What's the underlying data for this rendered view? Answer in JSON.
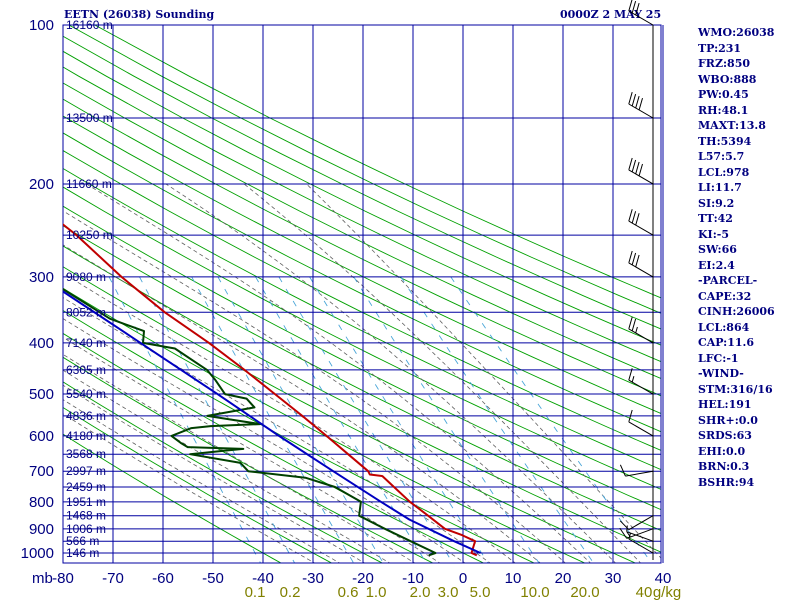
{
  "header": {
    "title": "EETN (26038) Sounding",
    "datetime": "0000Z  2 MAY 25"
  },
  "indices": [
    "WMO:26038",
    "TP:231",
    "FRZ:850",
    "WBO:888",
    "PW:0.45",
    "RH:48.1",
    "MAXT:13.8",
    "TH:5394",
    "L57:5.7",
    "LCL:978",
    "LI:11.7",
    "SI:9.2",
    "TT:42",
    "KI:-5",
    "SW:66",
    "EI:2.4",
    "-PARCEL-",
    "CAPE:32",
    "CINH:26006",
    "LCL:864",
    "CAP:11.6",
    "LFC:-1",
    "-WIND-",
    "STM:316/16",
    "HEL:191",
    "SHR+:0.0",
    "SRDS:63",
    "EHI:0.0",
    "BRN:0.3",
    "BSHR:94"
  ],
  "colors": {
    "grid": "#0000a0",
    "dry_adiabat": "#00a000",
    "moist_adiabat": "#606060",
    "mixing_ratio": "#4aa6d8",
    "temperature": "#c00000",
    "dewpoint": "#004000",
    "parcel": "#0000c0",
    "text": "#000080",
    "mixing_label": "#808000"
  },
  "chart_data": {
    "type": "line",
    "diagram": "skew-T log-p",
    "x_unit_label": "mb",
    "y_unit_label": "g/kg",
    "pressure_levels": [
      100,
      200,
      300,
      400,
      500,
      600,
      700,
      800,
      900,
      1000
    ],
    "pressure_ticks": [
      "100",
      "200",
      "300",
      "400",
      "500",
      "600",
      "700",
      "800",
      "900",
      "1000"
    ],
    "temperature_ticks": [
      "-80",
      "-70",
      "-60",
      "-50",
      "-40",
      "-30",
      "-20",
      "-10",
      "0",
      "10",
      "20",
      "30",
      "40"
    ],
    "mixing_ratio_labels": [
      "0.1",
      "0.2",
      "0.6",
      "1.0",
      "2.0",
      "3.0",
      "5.0",
      "10.0",
      "20.0",
      "40",
      "g/kg"
    ],
    "heights": [
      {
        "p": 100,
        "label": "16160 m"
      },
      {
        "p": 150,
        "label": "13500 m"
      },
      {
        "p": 200,
        "label": "11660 m"
      },
      {
        "p": 250,
        "label": "10250 m"
      },
      {
        "p": 300,
        "label": "9080 m"
      },
      {
        "p": 350,
        "label": "8052 m"
      },
      {
        "p": 400,
        "label": "7140 m"
      },
      {
        "p": 450,
        "label": "6305 m"
      },
      {
        "p": 500,
        "label": "5540 m"
      },
      {
        "p": 550,
        "label": "4836 m"
      },
      {
        "p": 600,
        "label": "4180 m"
      },
      {
        "p": 650,
        "label": "3568 m"
      },
      {
        "p": 700,
        "label": "2997 m"
      },
      {
        "p": 750,
        "label": "2459 m"
      },
      {
        "p": 800,
        "label": "1951 m"
      },
      {
        "p": 850,
        "label": "1468 m"
      },
      {
        "p": 900,
        "label": "1006 m"
      },
      {
        "p": 950,
        "label": "566 m"
      },
      {
        "p": 1000,
        "label": "146 m"
      }
    ],
    "series": [
      {
        "key": "temperature",
        "points": [
          [
            1010,
            2.6
          ],
          [
            1000,
            1.7
          ],
          [
            950,
            3.2
          ],
          [
            925,
            1.0
          ],
          [
            900,
            -2.0
          ],
          [
            850,
            -4.5
          ],
          [
            800,
            -7.2
          ],
          [
            750,
            -9.4
          ],
          [
            715,
            -11.0
          ],
          [
            710,
            -13.4
          ],
          [
            700,
            -13.5
          ],
          [
            650,
            -16.4
          ],
          [
            600,
            -19.5
          ],
          [
            550,
            -23.0
          ],
          [
            500,
            -27.0
          ],
          [
            450,
            -31.5
          ],
          [
            400,
            -36.8
          ],
          [
            350,
            -43.6
          ],
          [
            300,
            -49.9
          ],
          [
            250,
            -56.1
          ],
          [
            230,
            -59.7
          ],
          [
            200,
            -57.0
          ],
          [
            150,
            -57.5
          ],
          [
            125,
            -56.0
          ],
          [
            100,
            -58.0
          ]
        ]
      },
      {
        "key": "dewpoint",
        "points": [
          [
            1010,
            -7.0
          ],
          [
            1000,
            -5.5
          ],
          [
            950,
            -9.7
          ],
          [
            900,
            -14.0
          ],
          [
            850,
            -18.3
          ],
          [
            800,
            -17.0
          ],
          [
            750,
            -21.2
          ],
          [
            720,
            -26.5
          ],
          [
            700,
            -37.5
          ],
          [
            675,
            -38.5
          ],
          [
            650,
            -48.0
          ],
          [
            640,
            -41.0
          ],
          [
            635,
            -37.0
          ],
          [
            630,
            -48.0
          ],
          [
            620,
            -49.0
          ],
          [
            600,
            -50.5
          ],
          [
            580,
            -46.0
          ],
          [
            575,
            -42.0
          ],
          [
            570,
            -32.0
          ],
          [
            560,
            -37.0
          ],
          [
            550,
            -42.0
          ],
          [
            530,
            -32.0
          ],
          [
            510,
            -33.0
          ],
          [
            500,
            -37.0
          ],
          [
            470,
            -38.0
          ],
          [
            450,
            -39.0
          ],
          [
            410,
            -44.0
          ],
          [
            400,
            -50.0
          ],
          [
            380,
            -49.0
          ],
          [
            360,
            -55.0
          ],
          [
            300,
            -65.5
          ],
          [
            280,
            -68.0
          ],
          [
            250,
            -73.0
          ],
          [
            240,
            -73.0
          ],
          [
            225,
            -73.0
          ],
          [
            200,
            -76.0
          ]
        ]
      },
      {
        "key": "parcel",
        "points": [
          [
            1000,
            3.5
          ],
          [
            950,
            -1.0
          ],
          [
            864,
            -8.5
          ],
          [
            800,
            -13.0
          ],
          [
            700,
            -20.5
          ],
          [
            600,
            -29.0
          ],
          [
            500,
            -38.5
          ],
          [
            400,
            -50.5
          ],
          [
            300,
            -66.0
          ],
          [
            250,
            -74.0
          ],
          [
            220,
            -80.0
          ]
        ]
      }
    ],
    "wind_barbs": [
      {
        "p": 1000,
        "dir": 300,
        "kt": 5
      },
      {
        "p": 950,
        "dir": 290,
        "kt": 5
      },
      {
        "p": 900,
        "dir": 250,
        "kt": 15
      },
      {
        "p": 850,
        "dir": 240,
        "kt": 10
      },
      {
        "p": 700,
        "dir": 260,
        "kt": 10
      },
      {
        "p": 600,
        "dir": 300,
        "kt": 10
      },
      {
        "p": 500,
        "dir": 300,
        "kt": 15
      },
      {
        "p": 400,
        "dir": 300,
        "kt": 25
      },
      {
        "p": 300,
        "dir": 300,
        "kt": 30
      },
      {
        "p": 250,
        "dir": 300,
        "kt": 30
      },
      {
        "p": 200,
        "dir": 300,
        "kt": 40
      },
      {
        "p": 150,
        "dir": 300,
        "kt": 40
      },
      {
        "p": 100,
        "dir": 300,
        "kt": 30
      }
    ]
  }
}
